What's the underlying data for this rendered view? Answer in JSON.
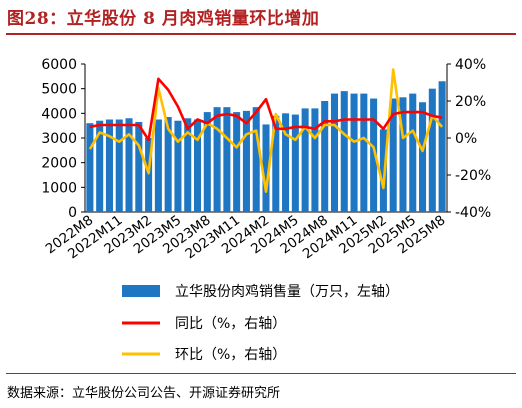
{
  "title": "图28：立华股份 8 月肉鸡销量环比增加",
  "source": "数据来源：立华股份公司公告、开源证券研究所",
  "colors": {
    "title": "#b22222",
    "bar": "#1f77c4",
    "yoy": "#ff0000",
    "mom": "#ffc000"
  },
  "chart_data": {
    "type": "bar+line",
    "x": [
      "2022M8",
      "2022M9",
      "2022M10",
      "2022M11",
      "2022M12",
      "2023M1",
      "2023M2",
      "2023M3",
      "2023M4",
      "2023M5",
      "2023M6",
      "2023M7",
      "2023M8",
      "2023M9",
      "2023M10",
      "2023M11",
      "2023M12",
      "2024M1",
      "2024M2",
      "2024M3",
      "2024M4",
      "2024M5",
      "2024M6",
      "2024M7",
      "2024M8",
      "2024M9",
      "2024M10",
      "2024M11",
      "2024M12",
      "2025M1",
      "2025M2",
      "2025M3",
      "2025M4",
      "2025M5",
      "2025M6",
      "2025M7",
      "2025M8"
    ],
    "x_tick_labels": [
      "2022M8",
      "2022M11",
      "2023M2",
      "2023M5",
      "2023M8",
      "2023M11",
      "2024M2",
      "2024M5",
      "2024M8",
      "2024M11",
      "2025M2",
      "2025M5",
      "2025M8"
    ],
    "left_axis": {
      "min": 0,
      "max": 6000,
      "ticks": [
        "0",
        "1000",
        "2000",
        "3000",
        "4000",
        "5000",
        "6000"
      ]
    },
    "right_axis": {
      "min": -40,
      "max": 40,
      "ticks": [
        "-40%",
        "-20%",
        "0%",
        "20%",
        "40%"
      ]
    },
    "legend_position": "bottom",
    "series": [
      {
        "name": "立华股份肉鸡销售量（万只，左轴）",
        "type": "bar",
        "axis": "left",
        "values": [
          3600,
          3700,
          3750,
          3750,
          3800,
          3650,
          3000,
          3750,
          3850,
          3700,
          3800,
          3750,
          4050,
          4250,
          4250,
          4050,
          4100,
          4250,
          3550,
          3900,
          4000,
          3950,
          4200,
          4200,
          4500,
          4800,
          4900,
          4800,
          4800,
          4600,
          3350,
          4600,
          4650,
          4800,
          4450,
          5000,
          5300
        ]
      },
      {
        "name": "同比（%，右轴）",
        "type": "line",
        "axis": "right",
        "values": [
          6,
          7,
          7,
          7,
          7,
          7,
          -1,
          32,
          26,
          17,
          5,
          10,
          8,
          12,
          13,
          12,
          8,
          14,
          21,
          5,
          5,
          6,
          6,
          5,
          9,
          9,
          10,
          10,
          10,
          10,
          5,
          13,
          14,
          14,
          14,
          12,
          11
        ]
      },
      {
        "name": "环比（%，右轴）",
        "type": "line",
        "axis": "right",
        "values": [
          -6,
          3,
          1,
          -2,
          2,
          -4,
          -19,
          27,
          5,
          -2,
          3,
          -1,
          8,
          5,
          0,
          -5,
          2,
          4,
          -29,
          13,
          2,
          -1,
          6,
          0,
          7,
          7,
          2,
          -2,
          0,
          -5,
          -27,
          37,
          0,
          4,
          -7,
          12,
          6
        ]
      }
    ]
  }
}
